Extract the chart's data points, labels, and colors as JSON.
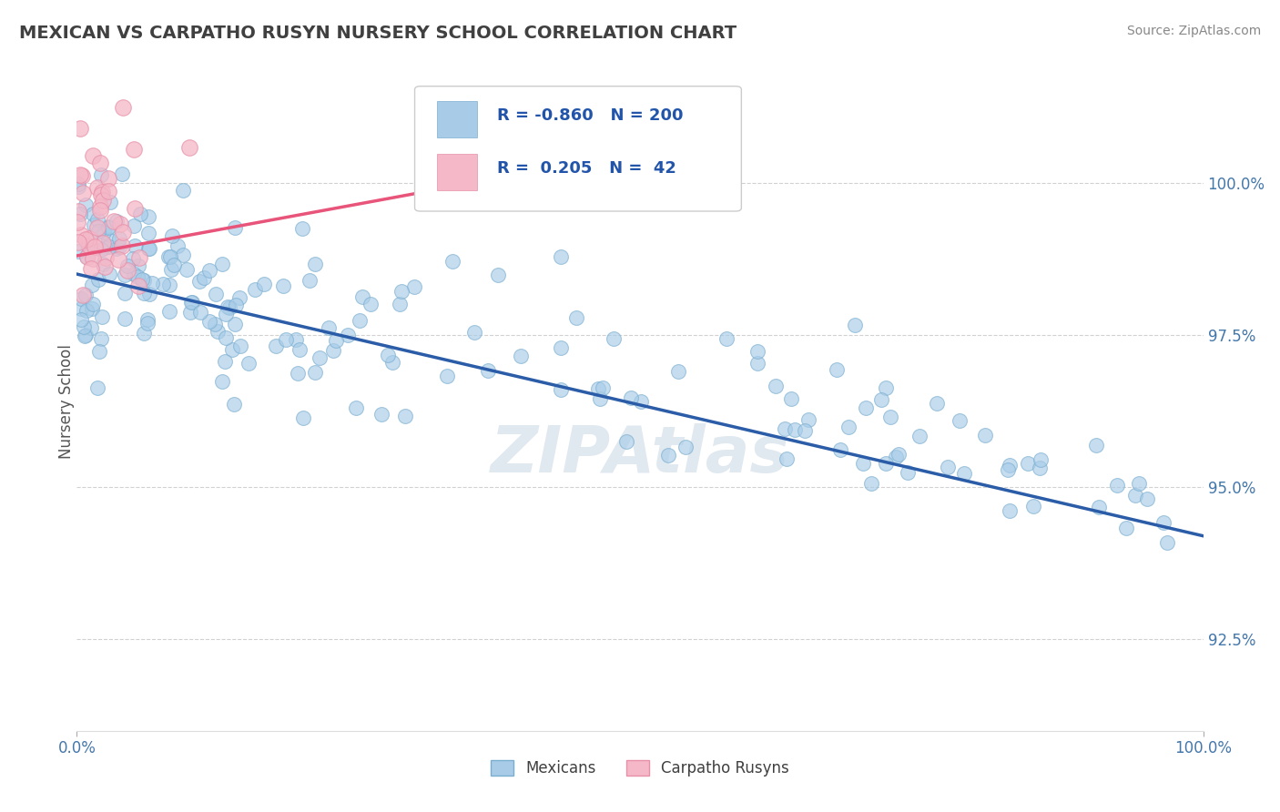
{
  "title": "MEXICAN VS CARPATHO RUSYN NURSERY SCHOOL CORRELATION CHART",
  "source_text": "Source: ZipAtlas.com",
  "ylabel": "Nursery School",
  "watermark": "ZIPAtlas",
  "legend_blue_label": "Mexicans",
  "legend_pink_label": "Carpatho Rusyns",
  "blue_R": -0.86,
  "blue_N": 200,
  "pink_R": 0.205,
  "pink_N": 42,
  "xlim": [
    0.0,
    100.0
  ],
  "ylim": [
    91.0,
    101.8
  ],
  "yticks": [
    92.5,
    95.0,
    97.5,
    100.0
  ],
  "ytick_labels": [
    "92.5%",
    "95.0%",
    "97.5%",
    "100.0%"
  ],
  "xtick_labels": [
    "0.0%",
    "100.0%"
  ],
  "blue_color": "#a8cce8",
  "blue_edge_color": "#7aaed0",
  "blue_line_color": "#2b5ca8",
  "pink_color": "#f4b8c8",
  "pink_edge_color": "#e890a8",
  "pink_line_color": "#e8547a",
  "background_color": "#ffffff",
  "grid_color": "#cccccc",
  "title_color": "#404040",
  "axis_label_color": "#4477aa",
  "legend_text_color": "#2255aa",
  "source_color": "#888888",
  "ylabel_color": "#555555",
  "watermark_color": "#e0e8f0"
}
